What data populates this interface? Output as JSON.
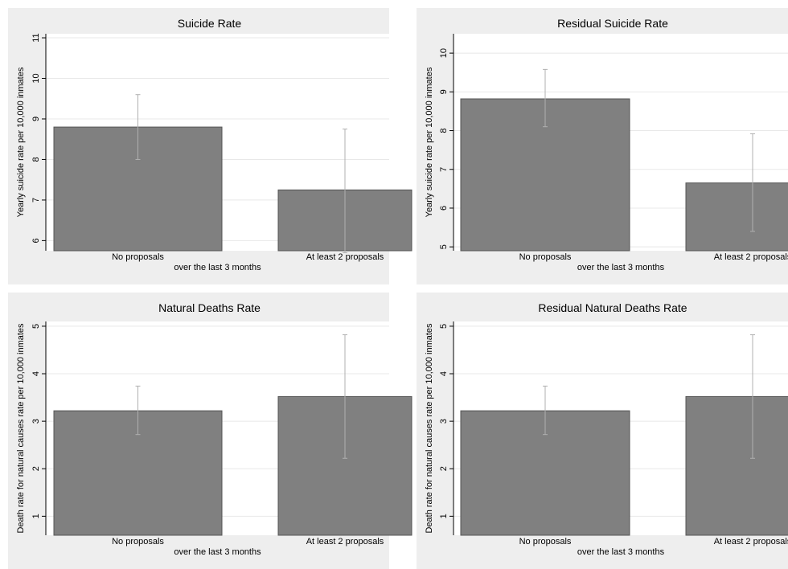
{
  "chart_data": [
    {
      "type": "bar",
      "title": "Suicide Rate",
      "xlabel": "over the last 3 months",
      "ylabel": "Yearly suicide rate per 10,000 inmates",
      "categories": [
        "No proposals",
        "At least 2 proposals"
      ],
      "values": [
        8.8,
        7.25
      ],
      "ci_low": [
        8.0,
        5.7
      ],
      "ci_high": [
        9.6,
        8.75
      ],
      "ylim": [
        5.75,
        11.1
      ],
      "yticks": [
        6,
        7,
        8,
        9,
        10,
        11
      ],
      "grid": true,
      "colors": {
        "bar": "#808080",
        "error": "#b0b0b0",
        "panel": "#eeeeee"
      }
    },
    {
      "type": "bar",
      "title": "Residual Suicide Rate",
      "xlabel": "over the last 3 months",
      "ylabel": "Yearly suicide rate per 10,000 inmates",
      "categories": [
        "No proposals",
        "At least 2 proposals"
      ],
      "values": [
        8.82,
        6.65
      ],
      "ci_low": [
        8.1,
        5.4
      ],
      "ci_high": [
        9.58,
        7.92
      ],
      "ylim": [
        4.9,
        10.5
      ],
      "yticks": [
        5,
        6,
        7,
        8,
        9,
        10
      ],
      "grid": true,
      "colors": {
        "bar": "#808080",
        "error": "#b0b0b0",
        "panel": "#eeeeee"
      }
    },
    {
      "type": "bar",
      "title": "Natural Deaths Rate",
      "xlabel": "over the last 3 months",
      "ylabel": "Death rate for natural causes rate per 10,000 inmates",
      "categories": [
        "No proposals",
        "At least 2 proposals"
      ],
      "values": [
        3.22,
        3.52
      ],
      "ci_low": [
        2.72,
        2.22
      ],
      "ci_high": [
        3.74,
        4.82
      ],
      "ylim": [
        0.6,
        5.1
      ],
      "yticks": [
        1,
        2,
        3,
        4,
        5
      ],
      "grid": true,
      "colors": {
        "bar": "#808080",
        "error": "#b0b0b0",
        "panel": "#eeeeee"
      }
    },
    {
      "type": "bar",
      "title": "Residual Natural Deaths Rate",
      "xlabel": "over the last 3 months",
      "ylabel": "Death rate for natural causes rate per 10,000 inmates",
      "categories": [
        "No proposals",
        "At least 2 proposals"
      ],
      "values": [
        3.22,
        3.52
      ],
      "ci_low": [
        2.72,
        2.22
      ],
      "ci_high": [
        3.74,
        4.82
      ],
      "ylim": [
        0.6,
        5.1
      ],
      "yticks": [
        1,
        2,
        3,
        4,
        5
      ],
      "grid": true,
      "colors": {
        "bar": "#808080",
        "error": "#b0b0b0",
        "panel": "#eeeeee"
      }
    }
  ]
}
